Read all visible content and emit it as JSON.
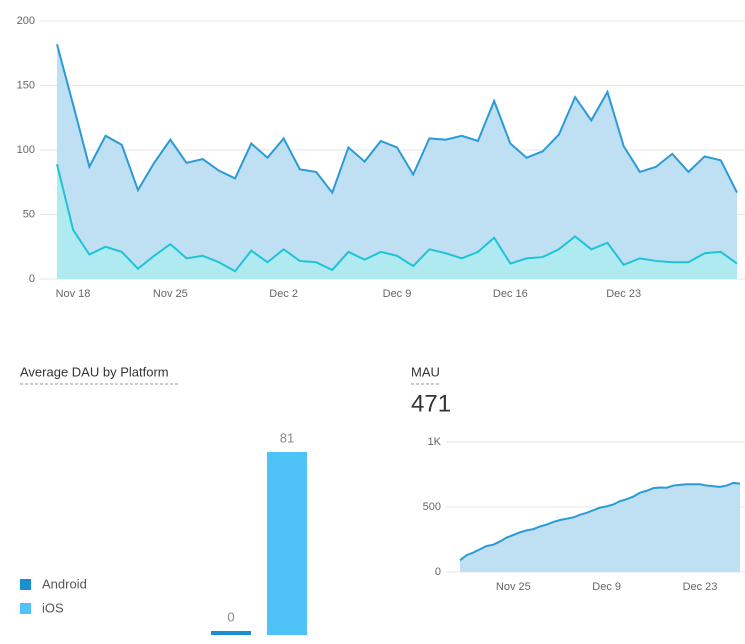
{
  "chart_data": [
    {
      "type": "area",
      "categories": [
        "Nov 18",
        null,
        null,
        null,
        null,
        null,
        null,
        "Nov 25",
        null,
        null,
        null,
        null,
        null,
        null,
        "Dec 2",
        null,
        null,
        null,
        null,
        null,
        null,
        "Dec 9",
        null,
        null,
        null,
        null,
        null,
        null,
        "Dec 16",
        null,
        null,
        null,
        null,
        null,
        null,
        "Dec 23",
        null,
        null,
        null,
        null,
        null,
        null,
        null
      ],
      "series": [
        {
          "color": "#2a9bd6",
          "values": [
            182,
            135,
            87,
            111,
            104,
            69,
            90,
            108,
            90,
            93,
            84,
            78,
            105,
            94,
            109,
            85,
            83,
            67,
            102,
            91,
            107,
            102,
            81,
            109,
            108,
            111,
            107,
            138,
            105,
            94,
            99,
            112,
            141,
            123,
            145,
            103,
            83,
            87,
            97,
            83,
            95,
            92,
            67
          ]
        },
        {
          "color": "#1fc3d6",
          "values": [
            89,
            38,
            19,
            25,
            21,
            8,
            18,
            27,
            16,
            18,
            13,
            6,
            22,
            13,
            23,
            14,
            13,
            7,
            21,
            15,
            21,
            18,
            10,
            23,
            20,
            16,
            21,
            32,
            12,
            16,
            17,
            23,
            33,
            23,
            28,
            11,
            16,
            14,
            13,
            13,
            20,
            21,
            12
          ]
        }
      ],
      "ylim": [
        0,
        200
      ],
      "yticks": [
        0,
        50,
        100,
        150,
        200
      ],
      "grid": true
    },
    {
      "type": "bar",
      "title": "Average DAU by Platform",
      "series": [
        {
          "name": "Android",
          "color": "#1a8fcf",
          "values": [
            0
          ]
        },
        {
          "name": "iOS",
          "color": "#4fc3f7",
          "values": [
            81
          ]
        }
      ]
    },
    {
      "type": "area",
      "title": "MAU",
      "value": 471,
      "categories": [
        null,
        null,
        null,
        null,
        null,
        null,
        null,
        null,
        "Nov 25",
        null,
        null,
        null,
        null,
        null,
        null,
        null,
        null,
        null,
        null,
        null,
        null,
        null,
        "Dec 9",
        null,
        null,
        null,
        null,
        null,
        null,
        null,
        null,
        null,
        null,
        null,
        null,
        null,
        "Dec 23",
        null,
        null,
        null,
        null,
        null,
        null
      ],
      "series": [
        {
          "color": "#2a9bd6",
          "values": [
            90,
            130,
            150,
            175,
            200,
            210,
            235,
            265,
            285,
            305,
            320,
            330,
            350,
            365,
            385,
            400,
            410,
            420,
            440,
            455,
            475,
            495,
            505,
            520,
            545,
            560,
            580,
            610,
            625,
            645,
            650,
            648,
            665,
            670,
            675,
            675,
            675,
            665,
            660,
            655,
            665,
            685,
            680
          ]
        }
      ],
      "ylim": [
        0,
        1000
      ],
      "yticks": [
        0,
        500,
        {
          "value": 1000,
          "label": "1K"
        }
      ],
      "grid": true
    }
  ]
}
